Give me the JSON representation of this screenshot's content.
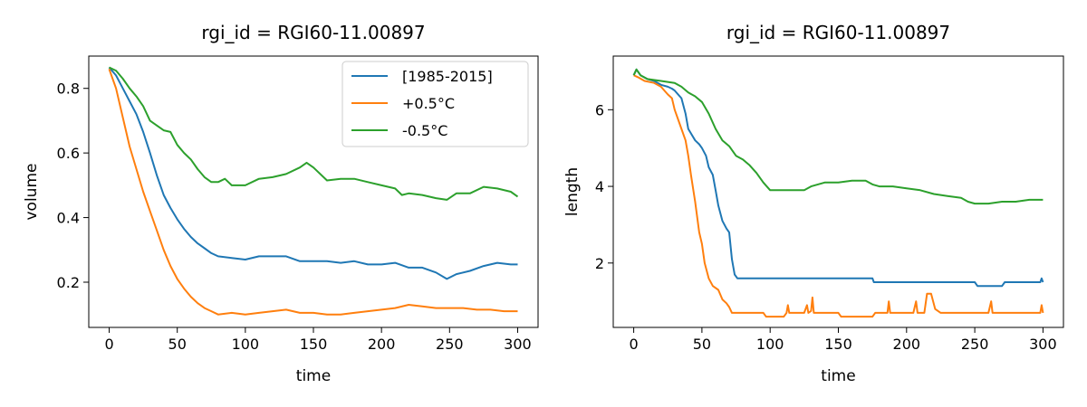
{
  "chart_data": [
    {
      "type": "line",
      "title": "rgi_id = RGI60-11.00897",
      "xlabel": "time",
      "ylabel": "volume",
      "xlim": [
        -15,
        315
      ],
      "ylim": [
        0.06,
        0.9
      ],
      "xticks": [
        0,
        50,
        100,
        150,
        200,
        250,
        300
      ],
      "yticks": [
        0.2,
        0.4,
        0.6,
        0.8
      ],
      "ytick_labels": [
        "0.2",
        "0.4",
        "0.6",
        "0.8"
      ],
      "legend": "top-right",
      "series": [
        {
          "name": "[1985-2015]",
          "color": "#1f77b4",
          "points": [
            [
              0,
              0.865
            ],
            [
              5,
              0.84
            ],
            [
              10,
              0.8
            ],
            [
              15,
              0.76
            ],
            [
              20,
              0.72
            ],
            [
              25,
              0.665
            ],
            [
              30,
              0.6
            ],
            [
              35,
              0.53
            ],
            [
              40,
              0.47
            ],
            [
              45,
              0.43
            ],
            [
              50,
              0.395
            ],
            [
              55,
              0.365
            ],
            [
              60,
              0.34
            ],
            [
              65,
              0.32
            ],
            [
              70,
              0.305
            ],
            [
              75,
              0.29
            ],
            [
              80,
              0.28
            ],
            [
              90,
              0.275
            ],
            [
              100,
              0.27
            ],
            [
              110,
              0.28
            ],
            [
              120,
              0.28
            ],
            [
              130,
              0.28
            ],
            [
              140,
              0.265
            ],
            [
              150,
              0.265
            ],
            [
              160,
              0.265
            ],
            [
              170,
              0.26
            ],
            [
              180,
              0.265
            ],
            [
              190,
              0.255
            ],
            [
              200,
              0.255
            ],
            [
              210,
              0.26
            ],
            [
              220,
              0.245
            ],
            [
              230,
              0.245
            ],
            [
              240,
              0.23
            ],
            [
              248,
              0.21
            ],
            [
              255,
              0.225
            ],
            [
              265,
              0.235
            ],
            [
              275,
              0.25
            ],
            [
              285,
              0.26
            ],
            [
              295,
              0.255
            ],
            [
              300,
              0.255
            ]
          ]
        },
        {
          "name": "+0.5°C",
          "color": "#ff7f0e",
          "points": [
            [
              0,
              0.86
            ],
            [
              5,
              0.8
            ],
            [
              10,
              0.71
            ],
            [
              15,
              0.62
            ],
            [
              20,
              0.55
            ],
            [
              25,
              0.48
            ],
            [
              30,
              0.42
            ],
            [
              35,
              0.36
            ],
            [
              40,
              0.3
            ],
            [
              45,
              0.25
            ],
            [
              50,
              0.21
            ],
            [
              55,
              0.18
            ],
            [
              60,
              0.155
            ],
            [
              65,
              0.135
            ],
            [
              70,
              0.12
            ],
            [
              75,
              0.11
            ],
            [
              80,
              0.1
            ],
            [
              90,
              0.105
            ],
            [
              100,
              0.1
            ],
            [
              110,
              0.105
            ],
            [
              120,
              0.11
            ],
            [
              130,
              0.115
            ],
            [
              140,
              0.105
            ],
            [
              150,
              0.105
            ],
            [
              160,
              0.1
            ],
            [
              170,
              0.1
            ],
            [
              180,
              0.105
            ],
            [
              190,
              0.11
            ],
            [
              200,
              0.115
            ],
            [
              210,
              0.12
            ],
            [
              220,
              0.13
            ],
            [
              230,
              0.125
            ],
            [
              240,
              0.12
            ],
            [
              250,
              0.12
            ],
            [
              260,
              0.12
            ],
            [
              270,
              0.115
            ],
            [
              280,
              0.115
            ],
            [
              290,
              0.11
            ],
            [
              300,
              0.11
            ]
          ]
        },
        {
          "name": "-0.5°C",
          "color": "#2ca02c",
          "points": [
            [
              0,
              0.865
            ],
            [
              5,
              0.855
            ],
            [
              10,
              0.83
            ],
            [
              15,
              0.8
            ],
            [
              20,
              0.775
            ],
            [
              25,
              0.745
            ],
            [
              30,
              0.7
            ],
            [
              35,
              0.685
            ],
            [
              40,
              0.67
            ],
            [
              45,
              0.665
            ],
            [
              50,
              0.625
            ],
            [
              55,
              0.6
            ],
            [
              60,
              0.58
            ],
            [
              65,
              0.55
            ],
            [
              70,
              0.525
            ],
            [
              75,
              0.51
            ],
            [
              80,
              0.51
            ],
            [
              85,
              0.52
            ],
            [
              90,
              0.5
            ],
            [
              100,
              0.5
            ],
            [
              110,
              0.52
            ],
            [
              120,
              0.525
            ],
            [
              130,
              0.535
            ],
            [
              140,
              0.555
            ],
            [
              145,
              0.57
            ],
            [
              150,
              0.555
            ],
            [
              160,
              0.515
            ],
            [
              170,
              0.52
            ],
            [
              180,
              0.52
            ],
            [
              190,
              0.51
            ],
            [
              200,
              0.5
            ],
            [
              210,
              0.49
            ],
            [
              215,
              0.47
            ],
            [
              220,
              0.475
            ],
            [
              230,
              0.47
            ],
            [
              240,
              0.46
            ],
            [
              248,
              0.455
            ],
            [
              255,
              0.475
            ],
            [
              265,
              0.475
            ],
            [
              275,
              0.495
            ],
            [
              285,
              0.49
            ],
            [
              295,
              0.48
            ],
            [
              300,
              0.465
            ]
          ]
        }
      ]
    },
    {
      "type": "line",
      "title": "rgi_id = RGI60-11.00897",
      "xlabel": "time",
      "ylabel": "length",
      "xlim": [
        -15,
        315
      ],
      "ylim": [
        0.32,
        7.4
      ],
      "xticks": [
        0,
        50,
        100,
        150,
        200,
        250,
        300
      ],
      "yticks": [
        2,
        4,
        6
      ],
      "ytick_labels": [
        "2",
        "4",
        "6"
      ],
      "series": [
        {
          "name": "[1985-2015]",
          "color": "#1f77b4",
          "points": [
            [
              0,
              6.9
            ],
            [
              2,
              7.05
            ],
            [
              5,
              6.9
            ],
            [
              10,
              6.8
            ],
            [
              15,
              6.75
            ],
            [
              20,
              6.65
            ],
            [
              25,
              6.6
            ],
            [
              28,
              6.55
            ],
            [
              30,
              6.5
            ],
            [
              35,
              6.3
            ],
            [
              38,
              5.9
            ],
            [
              40,
              5.5
            ],
            [
              45,
              5.2
            ],
            [
              48,
              5.1
            ],
            [
              50,
              5.0
            ],
            [
              53,
              4.8
            ],
            [
              55,
              4.5
            ],
            [
              58,
              4.3
            ],
            [
              60,
              3.9
            ],
            [
              62,
              3.5
            ],
            [
              65,
              3.1
            ],
            [
              68,
              2.9
            ],
            [
              70,
              2.8
            ],
            [
              72,
              2.1
            ],
            [
              74,
              1.7
            ],
            [
              76,
              1.6
            ],
            [
              100,
              1.6
            ],
            [
              150,
              1.6
            ],
            [
              175,
              1.6
            ],
            [
              176,
              1.5
            ],
            [
              200,
              1.5
            ],
            [
              250,
              1.5
            ],
            [
              252,
              1.4
            ],
            [
              270,
              1.4
            ],
            [
              272,
              1.5
            ],
            [
              298,
              1.5
            ],
            [
              299,
              1.6
            ],
            [
              300,
              1.5
            ]
          ]
        },
        {
          "name": "+0.5°C",
          "color": "#ff7f0e",
          "points": [
            [
              0,
              6.9
            ],
            [
              3,
              6.85
            ],
            [
              8,
              6.75
            ],
            [
              15,
              6.7
            ],
            [
              20,
              6.6
            ],
            [
              25,
              6.4
            ],
            [
              28,
              6.3
            ],
            [
              30,
              6.0
            ],
            [
              33,
              5.7
            ],
            [
              35,
              5.5
            ],
            [
              38,
              5.2
            ],
            [
              40,
              4.8
            ],
            [
              42,
              4.3
            ],
            [
              45,
              3.6
            ],
            [
              48,
              2.8
            ],
            [
              50,
              2.5
            ],
            [
              52,
              2.0
            ],
            [
              55,
              1.6
            ],
            [
              58,
              1.4
            ],
            [
              62,
              1.3
            ],
            [
              65,
              1.05
            ],
            [
              68,
              0.95
            ],
            [
              70,
              0.85
            ],
            [
              72,
              0.7
            ],
            [
              95,
              0.7
            ],
            [
              97,
              0.6
            ],
            [
              110,
              0.6
            ],
            [
              112,
              0.7
            ],
            [
              113,
              0.9
            ],
            [
              114,
              0.7
            ],
            [
              125,
              0.7
            ],
            [
              127,
              0.9
            ],
            [
              128,
              0.7
            ],
            [
              130,
              0.75
            ],
            [
              131,
              1.1
            ],
            [
              132,
              0.7
            ],
            [
              140,
              0.7
            ],
            [
              150,
              0.7
            ],
            [
              152,
              0.6
            ],
            [
              170,
              0.6
            ],
            [
              175,
              0.6
            ],
            [
              177,
              0.7
            ],
            [
              186,
              0.7
            ],
            [
              187,
              1.0
            ],
            [
              188,
              0.7
            ],
            [
              205,
              0.7
            ],
            [
              207,
              1.0
            ],
            [
              208,
              0.7
            ],
            [
              213,
              0.7
            ],
            [
              215,
              1.2
            ],
            [
              218,
              1.2
            ],
            [
              221,
              0.8
            ],
            [
              225,
              0.7
            ],
            [
              240,
              0.7
            ],
            [
              260,
              0.7
            ],
            [
              262,
              1.0
            ],
            [
              263,
              0.7
            ],
            [
              298,
              0.7
            ],
            [
              299,
              0.9
            ],
            [
              300,
              0.7
            ]
          ]
        },
        {
          "name": "-0.5°C",
          "color": "#2ca02c",
          "points": [
            [
              0,
              6.9
            ],
            [
              2,
              7.05
            ],
            [
              5,
              6.9
            ],
            [
              10,
              6.8
            ],
            [
              20,
              6.75
            ],
            [
              30,
              6.7
            ],
            [
              35,
              6.6
            ],
            [
              40,
              6.45
            ],
            [
              45,
              6.35
            ],
            [
              50,
              6.2
            ],
            [
              55,
              5.9
            ],
            [
              60,
              5.5
            ],
            [
              65,
              5.2
            ],
            [
              70,
              5.05
            ],
            [
              75,
              4.8
            ],
            [
              80,
              4.7
            ],
            [
              85,
              4.55
            ],
            [
              90,
              4.35
            ],
            [
              95,
              4.1
            ],
            [
              100,
              3.9
            ],
            [
              110,
              3.9
            ],
            [
              125,
              3.9
            ],
            [
              130,
              4.0
            ],
            [
              140,
              4.1
            ],
            [
              150,
              4.1
            ],
            [
              160,
              4.15
            ],
            [
              170,
              4.15
            ],
            [
              175,
              4.05
            ],
            [
              180,
              4.0
            ],
            [
              190,
              4.0
            ],
            [
              200,
              3.95
            ],
            [
              210,
              3.9
            ],
            [
              220,
              3.8
            ],
            [
              230,
              3.75
            ],
            [
              240,
              3.7
            ],
            [
              245,
              3.6
            ],
            [
              250,
              3.55
            ],
            [
              260,
              3.55
            ],
            [
              270,
              3.6
            ],
            [
              280,
              3.6
            ],
            [
              290,
              3.65
            ],
            [
              300,
              3.65
            ]
          ]
        }
      ]
    }
  ]
}
